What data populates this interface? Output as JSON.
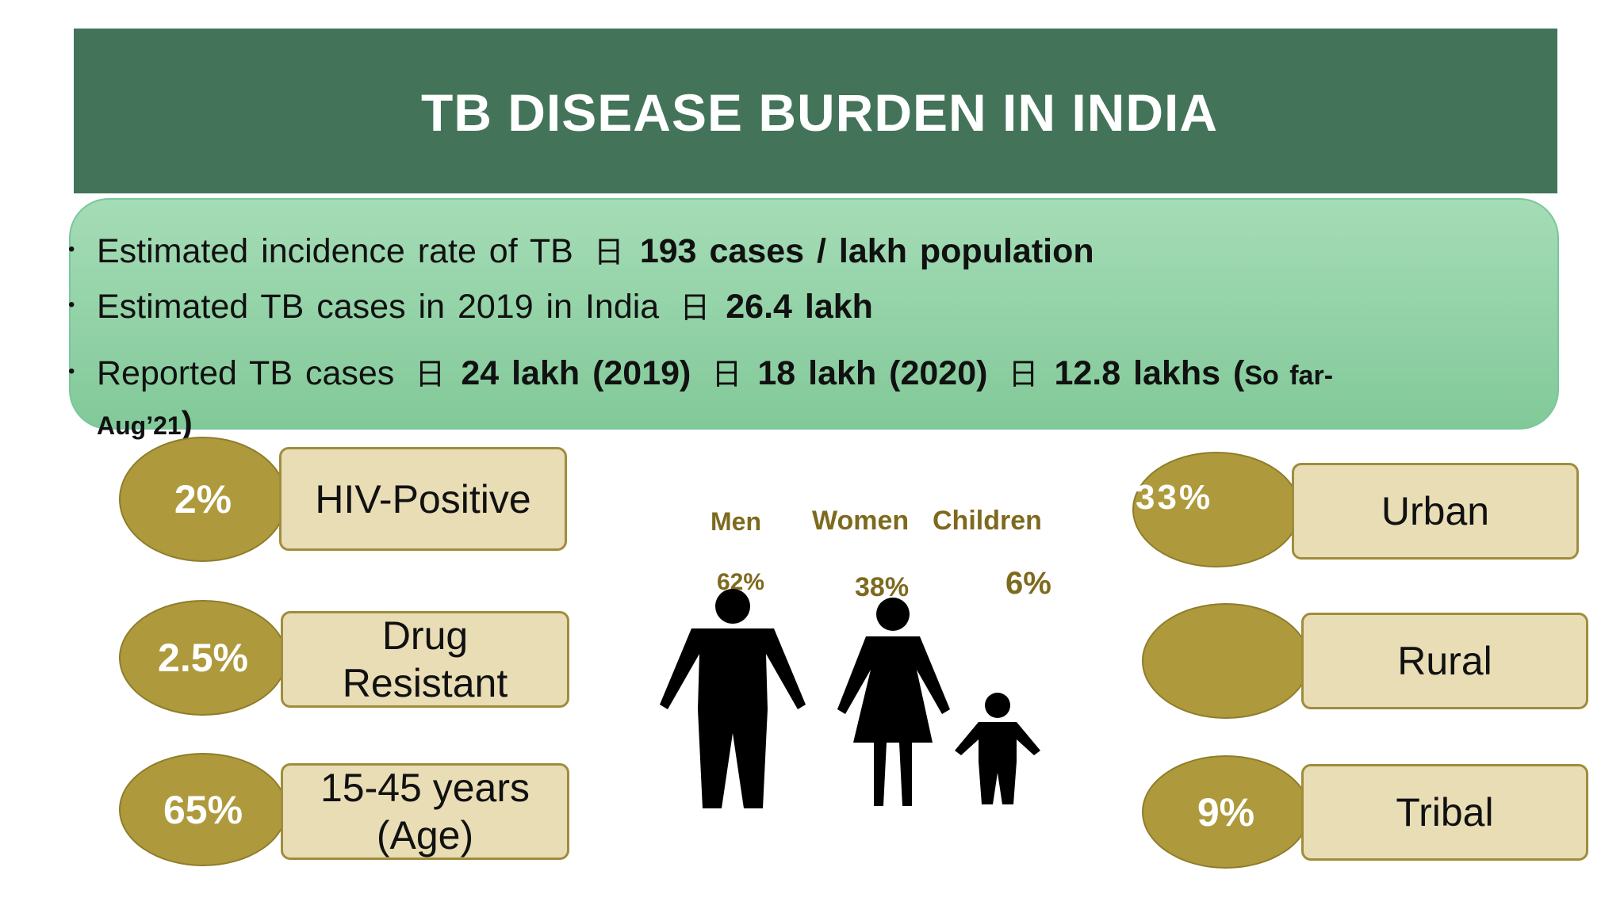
{
  "title": "TB DISEASE BURDEN IN INDIA",
  "info": {
    "line1": {
      "text": "Estimated incidence rate of TB",
      "arrow": "日",
      "value": "193 cases / lakh population"
    },
    "line2": {
      "text": "Estimated TB cases in 2019 in India",
      "arrow": "日",
      "value": "26.4 lakh"
    },
    "line3": {
      "text": "Reported TB cases",
      "arrow": "日",
      "v1": "24 lakh (2019)",
      "v2": "18 lakh (2020)",
      "v3": "12.8 lakhs (",
      "small": "So far-",
      "aug": "Aug’21",
      "close": ")"
    }
  },
  "left_stats": [
    {
      "percent": "2%",
      "label": "HIV-Positive"
    },
    {
      "percent": "2.5%",
      "label_line1": "Drug",
      "label_line2": "Resistant"
    },
    {
      "percent": "65%",
      "label_line1": "15-45 years",
      "label_line2": "(Age)"
    }
  ],
  "right_stats": [
    {
      "percent": "33%",
      "label": "Urban"
    },
    {
      "percent": "",
      "label": "Rural"
    },
    {
      "percent": "9%",
      "label": "Tribal"
    }
  ],
  "demographics": {
    "men_label": "Men",
    "women_label": "Women",
    "children_label": "Children",
    "men_pct": "62%",
    "women_pct": "38%",
    "children_pct": "6%"
  },
  "colors": {
    "header": "#43745a",
    "info_panel": "#96d4ab",
    "bubble": "#ae9a3c",
    "box": "#e8ddb5",
    "label_text": "#7d6a1e"
  }
}
